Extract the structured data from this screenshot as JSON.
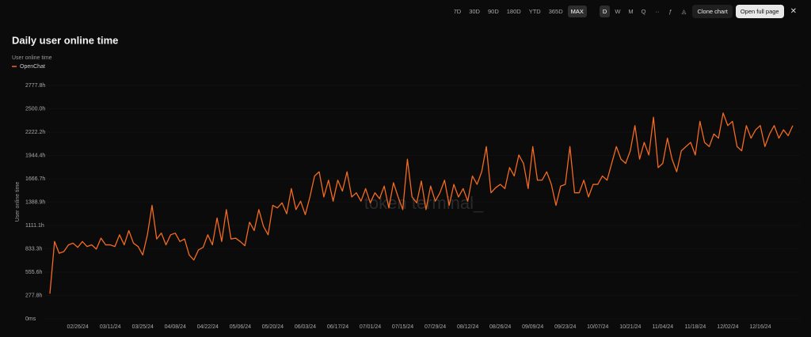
{
  "toolbar": {
    "ranges": [
      "7D",
      "30D",
      "90D",
      "180D",
      "YTD",
      "365D",
      "MAX"
    ],
    "active_range": 6,
    "intervals": [
      "D",
      "W",
      "M",
      "Q"
    ],
    "active_interval": 0,
    "clone": "Clone chart",
    "open": "Open full page"
  },
  "chart_data": {
    "type": "line",
    "title": "Daily user online time",
    "subtitle": "User online time",
    "ylabel": "User online time",
    "watermark": "token terminal_",
    "categories": [
      null,
      null,
      null,
      null,
      null,
      null,
      "02/26/24",
      null,
      null,
      null,
      null,
      null,
      null,
      "03/11/24",
      null,
      null,
      null,
      null,
      null,
      null,
      "03/25/24",
      null,
      null,
      null,
      null,
      null,
      null,
      "04/08/24",
      null,
      null,
      null,
      null,
      null,
      null,
      "04/22/24",
      null,
      null,
      null,
      null,
      null,
      null,
      "05/06/24",
      null,
      null,
      null,
      null,
      null,
      null,
      "05/20/24",
      null,
      null,
      null,
      null,
      null,
      null,
      "06/03/24",
      null,
      null,
      null,
      null,
      null,
      null,
      "06/17/24",
      null,
      null,
      null,
      null,
      null,
      null,
      "07/01/24",
      null,
      null,
      null,
      null,
      null,
      null,
      "07/15/24",
      null,
      null,
      null,
      null,
      null,
      null,
      "07/29/24",
      null,
      null,
      null,
      null,
      null,
      null,
      "08/12/24",
      null,
      null,
      null,
      null,
      null,
      null,
      "08/26/24",
      null,
      null,
      null,
      null,
      null,
      null,
      "09/09/24",
      null,
      null,
      null,
      null,
      null,
      null,
      "09/23/24",
      null,
      null,
      null,
      null,
      null,
      null,
      "10/07/24",
      null,
      null,
      null,
      null,
      null,
      null,
      "10/21/24",
      null,
      null,
      null,
      null,
      null,
      null,
      "11/04/24",
      null,
      null,
      null,
      null,
      null,
      null,
      "11/18/24",
      null,
      null,
      null,
      null,
      null,
      null,
      "12/02/24",
      null,
      null,
      null,
      null,
      null,
      null,
      "12/16/24",
      null,
      null,
      null,
      null,
      null,
      null,
      null
    ],
    "series": [
      {
        "name": "OpenChat",
        "color": "#f26b21",
        "values": [
          300,
          920,
          780,
          800,
          880,
          900,
          850,
          920,
          860,
          880,
          830,
          960,
          880,
          880,
          860,
          1000,
          880,
          1050,
          900,
          860,
          760,
          1000,
          1350,
          950,
          1020,
          880,
          1000,
          1020,
          920,
          950,
          760,
          700,
          820,
          850,
          1000,
          880,
          1200,
          920,
          1300,
          950,
          960,
          920,
          870,
          1150,
          1050,
          1300,
          1100,
          1000,
          1350,
          1320,
          1380,
          1250,
          1550,
          1300,
          1400,
          1240,
          1450,
          1700,
          1750,
          1450,
          1650,
          1400,
          1650,
          1520,
          1750,
          1450,
          1500,
          1400,
          1550,
          1380,
          1500,
          1430,
          1580,
          1320,
          1620,
          1450,
          1300,
          1900,
          1450,
          1380,
          1640,
          1300,
          1580,
          1400,
          1500,
          1650,
          1350,
          1600,
          1450,
          1550,
          1400,
          1700,
          1600,
          1750,
          2050,
          1500,
          1560,
          1600,
          1550,
          1800,
          1700,
          1950,
          1850,
          1550,
          2050,
          1650,
          1650,
          1750,
          1600,
          1350,
          1580,
          1600,
          2050,
          1500,
          1500,
          1650,
          1450,
          1600,
          1600,
          1700,
          1650,
          1850,
          2050,
          1900,
          1850,
          2000,
          2300,
          1900,
          2100,
          1950,
          2400,
          1800,
          1850,
          2150,
          1900,
          1750,
          2000,
          2050,
          2100,
          1950,
          2350,
          2100,
          2050,
          2200,
          2150,
          2450,
          2300,
          2350,
          2050,
          2000,
          2300,
          2150,
          2250,
          2300,
          2050,
          2200,
          2300,
          2150,
          2250,
          2180,
          2300
        ]
      }
    ],
    "ylim": [
      0,
      2777.8
    ],
    "yticks": [
      {
        "value": 0,
        "label": "0ms"
      },
      {
        "value": 277.8,
        "label": "277.8h"
      },
      {
        "value": 555.6,
        "label": "555.6h"
      },
      {
        "value": 833.3,
        "label": "833.3h"
      },
      {
        "value": 1111.1,
        "label": "1111.1h"
      },
      {
        "value": 1388.9,
        "label": "1388.9h"
      },
      {
        "value": 1666.7,
        "label": "1666.7h"
      },
      {
        "value": 1944.4,
        "label": "1944.4h"
      },
      {
        "value": 2222.2,
        "label": "2222.2h"
      },
      {
        "value": 2500,
        "label": "2500.0h"
      },
      {
        "value": 2777.8,
        "label": "2777.8h"
      }
    ],
    "grid": true
  }
}
